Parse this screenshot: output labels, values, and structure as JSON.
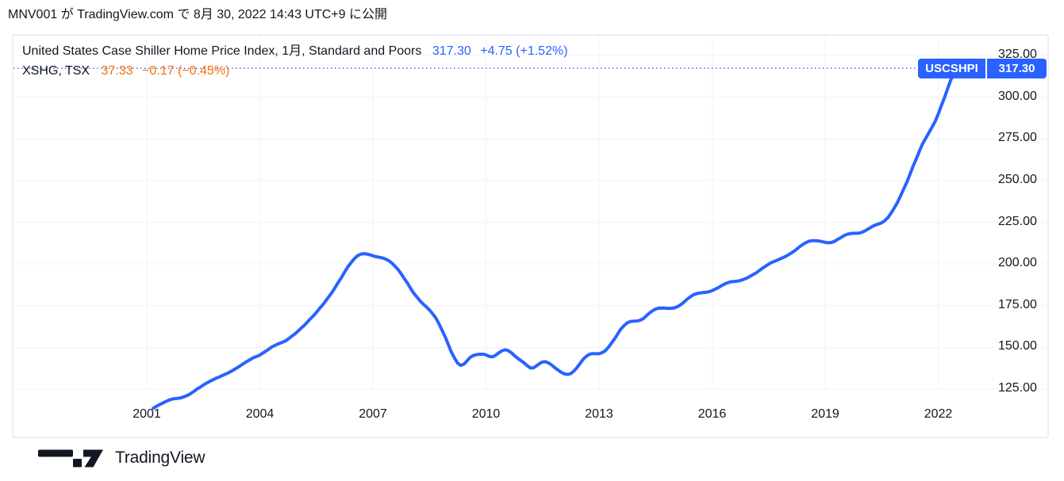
{
  "header": {
    "publish_info": "MNV001 が TradingView.com で 8月 30, 2022 14:43 UTC+9 に公開"
  },
  "legend": {
    "line1": {
      "name": "United States Case Shiller Home Price Index, 1月, Standard and Poors",
      "value": "317.30",
      "change": "+4.75 (+1.52%)"
    },
    "line2": {
      "name": "XSHG, TSX",
      "value": "37.33",
      "change": "−0.17 (−0.45%)"
    }
  },
  "price_label": {
    "symbol": "USCSHPI",
    "value": "317.30"
  },
  "footer": {
    "logo_text": "TradingView"
  },
  "colors": {
    "accent_blue": "#2962FF",
    "accent_orange": "#FF6D00",
    "text": "#131722",
    "grid": "#F0F3FA",
    "border": "#ECEEF6"
  },
  "chart_data": {
    "type": "line",
    "title": "United States Case Shiller Home Price Index, 1月, Standard and Poors",
    "symbol": "USCSHPI",
    "secondary_symbol": "XSHG, TSX",
    "interval": "1月",
    "last_value": 317.3,
    "last_change": "+4.75 (+1.52%)",
    "secondary_value": 37.33,
    "secondary_change": "−0.17 (−0.45%)",
    "grid": true,
    "legend_position": "top-left",
    "x_tick_labels": [
      "2001",
      "2004",
      "2007",
      "2010",
      "2013",
      "2016",
      "2019",
      "2022"
    ],
    "x_gridline_years": [
      2001,
      2004,
      2007,
      2010,
      2013,
      2016,
      2019,
      2022
    ],
    "y_tick_labels": [
      "325.00",
      "300.00",
      "275.00",
      "250.00",
      "225.00",
      "200.00",
      "175.00",
      "150.00",
      "125.00"
    ],
    "y_gridline_values": [
      325,
      300,
      275,
      250,
      225,
      200,
      175,
      150,
      125
    ],
    "x_range": [
      2000.8,
      2022.9
    ],
    "y_range": [
      104,
      337
    ],
    "series": [
      {
        "name": "USCSHPI",
        "color": "#2962FF",
        "points": [
          [
            2001.17,
            113.5
          ],
          [
            2001.25,
            114.6
          ],
          [
            2001.33,
            115.6
          ],
          [
            2001.42,
            116.6
          ],
          [
            2001.5,
            117.5
          ],
          [
            2001.58,
            118.3
          ],
          [
            2001.67,
            119.0
          ],
          [
            2001.75,
            119.3
          ],
          [
            2001.83,
            119.5
          ],
          [
            2001.92,
            119.8
          ],
          [
            2002.0,
            120.5
          ],
          [
            2002.08,
            121.2
          ],
          [
            2002.17,
            122.4
          ],
          [
            2002.25,
            123.6
          ],
          [
            2002.33,
            125.0
          ],
          [
            2002.42,
            126.2
          ],
          [
            2002.5,
            127.4
          ],
          [
            2002.58,
            128.5
          ],
          [
            2002.67,
            129.6
          ],
          [
            2002.75,
            130.5
          ],
          [
            2002.83,
            131.4
          ],
          [
            2002.92,
            132.2
          ],
          [
            2003.0,
            133.1
          ],
          [
            2003.08,
            133.9
          ],
          [
            2003.17,
            134.8
          ],
          [
            2003.25,
            135.8
          ],
          [
            2003.33,
            136.9
          ],
          [
            2003.42,
            138.1
          ],
          [
            2003.5,
            139.3
          ],
          [
            2003.58,
            140.5
          ],
          [
            2003.67,
            141.7
          ],
          [
            2003.75,
            142.8
          ],
          [
            2003.83,
            143.8
          ],
          [
            2003.92,
            144.6
          ],
          [
            2004.0,
            145.4
          ],
          [
            2004.08,
            146.6
          ],
          [
            2004.17,
            147.9
          ],
          [
            2004.25,
            149.2
          ],
          [
            2004.33,
            150.4
          ],
          [
            2004.42,
            151.4
          ],
          [
            2004.5,
            152.2
          ],
          [
            2004.58,
            152.9
          ],
          [
            2004.67,
            153.8
          ],
          [
            2004.75,
            155.0
          ],
          [
            2004.83,
            156.4
          ],
          [
            2004.92,
            157.9
          ],
          [
            2005.0,
            159.5
          ],
          [
            2005.08,
            161.2
          ],
          [
            2005.17,
            163.0
          ],
          [
            2005.25,
            164.9
          ],
          [
            2005.33,
            166.9
          ],
          [
            2005.42,
            168.9
          ],
          [
            2005.5,
            171.0
          ],
          [
            2005.58,
            173.2
          ],
          [
            2005.67,
            175.5
          ],
          [
            2005.75,
            177.9
          ],
          [
            2005.83,
            180.4
          ],
          [
            2005.92,
            183.1
          ],
          [
            2006.0,
            186.0
          ],
          [
            2006.08,
            189.0
          ],
          [
            2006.17,
            192.1
          ],
          [
            2006.25,
            195.2
          ],
          [
            2006.33,
            198.1
          ],
          [
            2006.42,
            200.8
          ],
          [
            2006.5,
            203.0
          ],
          [
            2006.58,
            204.7
          ],
          [
            2006.67,
            205.8
          ],
          [
            2006.75,
            206.2
          ],
          [
            2006.83,
            206.0
          ],
          [
            2006.92,
            205.5
          ],
          [
            2007.0,
            204.9
          ],
          [
            2007.08,
            204.4
          ],
          [
            2007.17,
            204.0
          ],
          [
            2007.25,
            203.6
          ],
          [
            2007.33,
            203.0
          ],
          [
            2007.42,
            202.0
          ],
          [
            2007.5,
            200.6
          ],
          [
            2007.58,
            198.8
          ],
          [
            2007.67,
            196.6
          ],
          [
            2007.75,
            194.1
          ],
          [
            2007.83,
            191.3
          ],
          [
            2007.92,
            188.4
          ],
          [
            2008.0,
            185.4
          ],
          [
            2008.08,
            182.6
          ],
          [
            2008.17,
            180.1
          ],
          [
            2008.25,
            177.9
          ],
          [
            2008.33,
            176.0
          ],
          [
            2008.42,
            174.2
          ],
          [
            2008.5,
            172.4
          ],
          [
            2008.58,
            170.3
          ],
          [
            2008.67,
            167.6
          ],
          [
            2008.75,
            164.3
          ],
          [
            2008.83,
            160.5
          ],
          [
            2008.92,
            156.2
          ],
          [
            2009.0,
            151.7
          ],
          [
            2009.08,
            147.3
          ],
          [
            2009.17,
            143.4
          ],
          [
            2009.25,
            140.5
          ],
          [
            2009.33,
            139.2
          ],
          [
            2009.42,
            140.0
          ],
          [
            2009.5,
            142.0
          ],
          [
            2009.58,
            144.0
          ],
          [
            2009.67,
            145.2
          ],
          [
            2009.75,
            145.6
          ],
          [
            2009.83,
            145.9
          ],
          [
            2009.92,
            145.9
          ],
          [
            2010.0,
            145.5
          ],
          [
            2010.08,
            144.6
          ],
          [
            2010.17,
            144.3
          ],
          [
            2010.25,
            145.2
          ],
          [
            2010.33,
            146.6
          ],
          [
            2010.42,
            147.9
          ],
          [
            2010.5,
            148.6
          ],
          [
            2010.58,
            148.2
          ],
          [
            2010.67,
            146.9
          ],
          [
            2010.75,
            145.2
          ],
          [
            2010.83,
            143.6
          ],
          [
            2010.92,
            142.2
          ],
          [
            2011.0,
            140.9
          ],
          [
            2011.08,
            139.3
          ],
          [
            2011.17,
            137.8
          ],
          [
            2011.25,
            137.6
          ],
          [
            2011.33,
            138.8
          ],
          [
            2011.42,
            140.3
          ],
          [
            2011.5,
            141.3
          ],
          [
            2011.58,
            141.4
          ],
          [
            2011.67,
            140.6
          ],
          [
            2011.75,
            139.3
          ],
          [
            2011.83,
            137.8
          ],
          [
            2011.92,
            136.3
          ],
          [
            2012.0,
            135.0
          ],
          [
            2012.08,
            134.1
          ],
          [
            2012.17,
            133.8
          ],
          [
            2012.25,
            134.3
          ],
          [
            2012.33,
            135.8
          ],
          [
            2012.42,
            138.0
          ],
          [
            2012.5,
            140.5
          ],
          [
            2012.58,
            142.9
          ],
          [
            2012.67,
            144.8
          ],
          [
            2012.75,
            145.9
          ],
          [
            2012.83,
            146.3
          ],
          [
            2012.92,
            146.2
          ],
          [
            2013.0,
            146.2
          ],
          [
            2013.08,
            146.8
          ],
          [
            2013.17,
            148.1
          ],
          [
            2013.25,
            150.1
          ],
          [
            2013.33,
            152.6
          ],
          [
            2013.42,
            155.4
          ],
          [
            2013.5,
            158.3
          ],
          [
            2013.58,
            161.0
          ],
          [
            2013.67,
            163.2
          ],
          [
            2013.75,
            164.7
          ],
          [
            2013.83,
            165.5
          ],
          [
            2013.92,
            165.7
          ],
          [
            2014.0,
            165.8
          ],
          [
            2014.08,
            166.2
          ],
          [
            2014.17,
            167.2
          ],
          [
            2014.25,
            168.8
          ],
          [
            2014.33,
            170.5
          ],
          [
            2014.42,
            172.0
          ],
          [
            2014.5,
            173.0
          ],
          [
            2014.58,
            173.5
          ],
          [
            2014.67,
            173.6
          ],
          [
            2014.75,
            173.5
          ],
          [
            2014.83,
            173.4
          ],
          [
            2014.92,
            173.4
          ],
          [
            2015.0,
            173.7
          ],
          [
            2015.08,
            174.4
          ],
          [
            2015.17,
            175.6
          ],
          [
            2015.25,
            177.1
          ],
          [
            2015.33,
            178.8
          ],
          [
            2015.42,
            180.3
          ],
          [
            2015.5,
            181.5
          ],
          [
            2015.58,
            182.2
          ],
          [
            2015.67,
            182.6
          ],
          [
            2015.75,
            182.8
          ],
          [
            2015.83,
            183.0
          ],
          [
            2015.92,
            183.4
          ],
          [
            2016.0,
            184.0
          ],
          [
            2016.08,
            184.9
          ],
          [
            2016.17,
            185.9
          ],
          [
            2016.25,
            187.0
          ],
          [
            2016.33,
            188.0
          ],
          [
            2016.42,
            188.8
          ],
          [
            2016.5,
            189.3
          ],
          [
            2016.58,
            189.5
          ],
          [
            2016.67,
            189.7
          ],
          [
            2016.75,
            190.1
          ],
          [
            2016.83,
            190.7
          ],
          [
            2016.92,
            191.5
          ],
          [
            2017.0,
            192.5
          ],
          [
            2017.08,
            193.5
          ],
          [
            2017.17,
            194.7
          ],
          [
            2017.25,
            196.0
          ],
          [
            2017.33,
            197.4
          ],
          [
            2017.42,
            198.7
          ],
          [
            2017.5,
            199.9
          ],
          [
            2017.58,
            200.9
          ],
          [
            2017.67,
            201.7
          ],
          [
            2017.75,
            202.5
          ],
          [
            2017.83,
            203.3
          ],
          [
            2017.92,
            204.2
          ],
          [
            2018.0,
            205.2
          ],
          [
            2018.08,
            206.3
          ],
          [
            2018.17,
            207.6
          ],
          [
            2018.25,
            209.0
          ],
          [
            2018.33,
            210.5
          ],
          [
            2018.42,
            211.9
          ],
          [
            2018.5,
            213.0
          ],
          [
            2018.58,
            213.7
          ],
          [
            2018.67,
            214.0
          ],
          [
            2018.75,
            214.0
          ],
          [
            2018.83,
            213.8
          ],
          [
            2018.92,
            213.4
          ],
          [
            2019.0,
            213.0
          ],
          [
            2019.08,
            212.7
          ],
          [
            2019.17,
            212.9
          ],
          [
            2019.25,
            213.6
          ],
          [
            2019.33,
            214.7
          ],
          [
            2019.42,
            215.9
          ],
          [
            2019.5,
            217.0
          ],
          [
            2019.58,
            217.8
          ],
          [
            2019.67,
            218.2
          ],
          [
            2019.75,
            218.4
          ],
          [
            2019.83,
            218.4
          ],
          [
            2019.92,
            218.6
          ],
          [
            2020.0,
            219.2
          ],
          [
            2020.08,
            220.2
          ],
          [
            2020.17,
            221.4
          ],
          [
            2020.25,
            222.5
          ],
          [
            2020.33,
            223.4
          ],
          [
            2020.42,
            224.0
          ],
          [
            2020.5,
            224.7
          ],
          [
            2020.58,
            225.9
          ],
          [
            2020.67,
            227.9
          ],
          [
            2020.75,
            230.5
          ],
          [
            2020.83,
            233.5
          ],
          [
            2020.92,
            237.0
          ],
          [
            2021.0,
            240.8
          ],
          [
            2021.08,
            244.8
          ],
          [
            2021.17,
            249.2
          ],
          [
            2021.25,
            253.8
          ],
          [
            2021.33,
            258.5
          ],
          [
            2021.42,
            263.2
          ],
          [
            2021.5,
            267.7
          ],
          [
            2021.58,
            271.8
          ],
          [
            2021.67,
            275.4
          ],
          [
            2021.75,
            278.6
          ],
          [
            2021.83,
            281.8
          ],
          [
            2021.92,
            285.5
          ],
          [
            2022.0,
            289.9
          ],
          [
            2022.08,
            294.8
          ],
          [
            2022.17,
            300.0
          ],
          [
            2022.25,
            305.2
          ],
          [
            2022.33,
            310.2
          ],
          [
            2022.42,
            314.7
          ],
          [
            2022.47,
            317.3
          ]
        ]
      }
    ]
  }
}
